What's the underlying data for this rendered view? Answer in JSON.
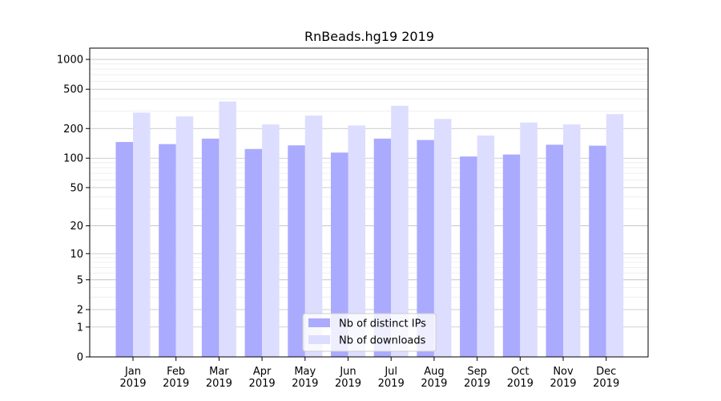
{
  "chart_data": {
    "type": "bar",
    "title": "RnBeads.hg19 2019",
    "xlabel": "",
    "ylabel": "",
    "y_scale": "symlog",
    "ylim": [
      0,
      1300
    ],
    "y_ticks": [
      0,
      1,
      2,
      5,
      10,
      20,
      50,
      100,
      200,
      500,
      1000
    ],
    "y_tick_labels": [
      "0",
      "1",
      "2",
      "5",
      "10",
      "20",
      "50",
      "100",
      "200",
      "500",
      "1000"
    ],
    "grid": true,
    "legend_position": "bottom-center",
    "categories": [
      [
        "Jan",
        "2019"
      ],
      [
        "Feb",
        "2019"
      ],
      [
        "Mar",
        "2019"
      ],
      [
        "Apr",
        "2019"
      ],
      [
        "May",
        "2019"
      ],
      [
        "Jun",
        "2019"
      ],
      [
        "Jul",
        "2019"
      ],
      [
        "Aug",
        "2019"
      ],
      [
        "Sep",
        "2019"
      ],
      [
        "Oct",
        "2019"
      ],
      [
        "Nov",
        "2019"
      ],
      [
        "Dec",
        "2019"
      ]
    ],
    "series": [
      {
        "name": "Nb of distinct IPs",
        "color": "#aaaaff",
        "values": [
          146,
          139,
          158,
          124,
          135,
          114,
          158,
          153,
          104,
          109,
          137,
          134
        ]
      },
      {
        "name": "Nb of downloads",
        "color": "#ddddff",
        "values": [
          290,
          265,
          375,
          220,
          270,
          215,
          340,
          250,
          170,
          230,
          220,
          280
        ]
      }
    ]
  }
}
